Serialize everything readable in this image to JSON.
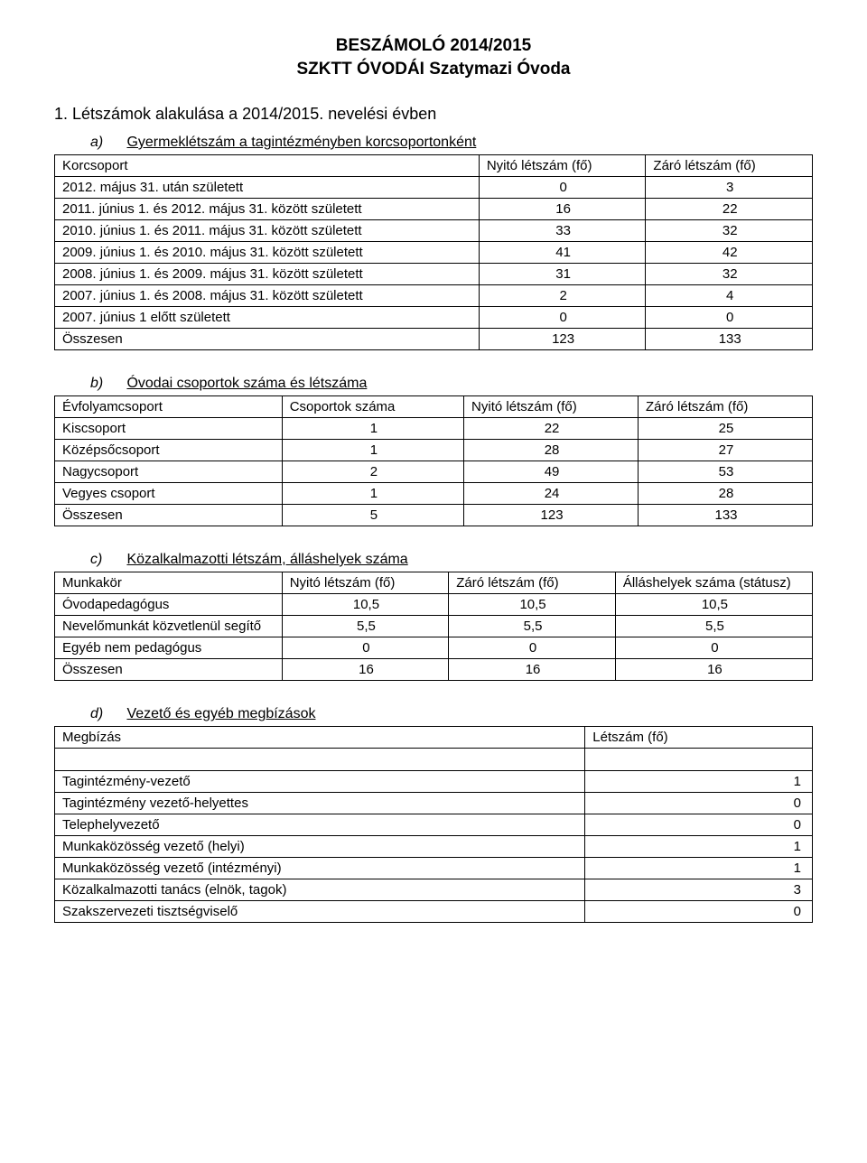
{
  "header": {
    "title1": "BESZÁMOLÓ 2014/2015",
    "title2": "SZKTT ÓVODÁI Szatymazi Óvoda"
  },
  "section1": {
    "heading": "1.  Létszámok alakulása a 2014/2015. nevelési évben",
    "a": {
      "letter": "a)",
      "title": "Gyermeklétszám a tagintézményben korcsoportonként",
      "headers": [
        "Korcsoport",
        "Nyitó létszám (fő)",
        "Záró létszám (fő)"
      ],
      "rows": [
        {
          "label": "2012. május 31. után született",
          "open": "0",
          "close": "3"
        },
        {
          "label": "2011. június 1. és 2012. május 31. között született",
          "open": "16",
          "close": "22"
        },
        {
          "label": "2010. június 1. és 2011. május 31. között született",
          "open": "33",
          "close": "32"
        },
        {
          "label": "2009. június 1. és 2010. május 31. között született",
          "open": "41",
          "close": "42"
        },
        {
          "label": "2008. június 1. és 2009. május 31. között született",
          "open": "31",
          "close": "32"
        },
        {
          "label": "2007. június 1. és 2008. május 31. között született",
          "open": "2",
          "close": "4"
        },
        {
          "label": "2007. június 1 előtt született",
          "open": "0",
          "close": "0"
        },
        {
          "label": "Összesen",
          "open": "123",
          "close": "133"
        }
      ]
    },
    "b": {
      "letter": "b)",
      "title": "Óvodai csoportok száma és létszáma",
      "headers": [
        "Évfolyamcsoport",
        "Csoportok száma",
        "Nyitó létszám (fő)",
        "Záró létszám (fő)"
      ],
      "rows": [
        {
          "label": "Kiscsoport",
          "v1": "1",
          "v2": "22",
          "v3": "25"
        },
        {
          "label": "Középsőcsoport",
          "v1": "1",
          "v2": "28",
          "v3": "27"
        },
        {
          "label": "Nagycsoport",
          "v1": "2",
          "v2": "49",
          "v3": "53"
        },
        {
          "label": "Vegyes csoport",
          "v1": "1",
          "v2": "24",
          "v3": "28"
        },
        {
          "label": "Összesen",
          "v1": "5",
          "v2": "123",
          "v3": "133"
        }
      ]
    },
    "c": {
      "letter": "c)",
      "title": "Közalkalmazotti létszám, álláshelyek száma",
      "headers": [
        "Munkakör",
        "Nyitó létszám (fő)",
        "Záró létszám (fő)",
        "Álláshelyek száma (státusz)"
      ],
      "rows": [
        {
          "label": "Óvodapedagógus",
          "v1": "10,5",
          "v2": "10,5",
          "v3": "10,5"
        },
        {
          "label": "Nevelőmunkát közvetlenül segítő",
          "v1": "5,5",
          "v2": "5,5",
          "v3": "5,5"
        },
        {
          "label": "Egyéb nem pedagógus",
          "v1": "0",
          "v2": "0",
          "v3": "0"
        },
        {
          "label": "Összesen",
          "v1": "16",
          "v2": "16",
          "v3": "16"
        }
      ]
    },
    "d": {
      "letter": "d)",
      "title": "Vezető és egyéb megbízások",
      "headers": [
        "Megbízás",
        "Létszám (fő)"
      ],
      "rows": [
        {
          "label": "Tagintézmény-vezető",
          "v": "1"
        },
        {
          "label": "Tagintézmény vezető-helyettes",
          "v": "0"
        },
        {
          "label": "Telephelyvezető",
          "v": "0"
        },
        {
          "label": "Munkaközösség vezető (helyi)",
          "v": "1"
        },
        {
          "label": "Munkaközösség vezető (intézményi)",
          "v": "1"
        },
        {
          "label": "Közalkalmazotti tanács (elnök, tagok)",
          "v": "3"
        },
        {
          "label": "Szakszervezeti tisztségviselő",
          "v": "0"
        }
      ]
    }
  }
}
